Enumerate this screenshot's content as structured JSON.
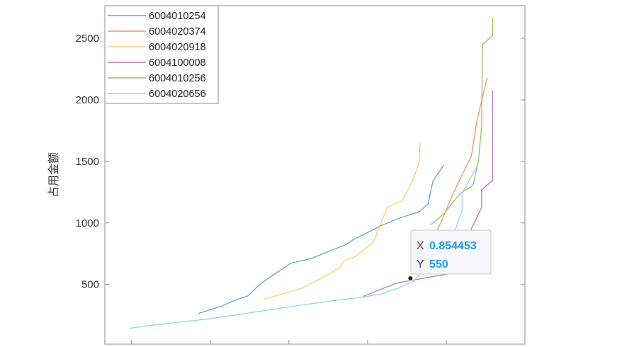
{
  "chart_data": {
    "type": "line",
    "title": "",
    "xlabel": "",
    "ylabel": "占用金额",
    "xlim": [
      0.466,
      1.0
    ],
    "ylim": [
      15,
      2765
    ],
    "xticks": [
      0.5,
      0.6,
      0.7,
      0.8,
      0.9,
      1.0
    ],
    "yticks": [
      500,
      1000,
      1500,
      2000,
      2500
    ],
    "ytick_labels": [
      "500",
      "1000",
      "1500",
      "2000",
      "2500"
    ],
    "grid": false,
    "legend_position": "top-left",
    "series": [
      {
        "name": "6004010254",
        "color": "#5fa2d6",
        "x": [
          0.585,
          0.616,
          0.63,
          0.648,
          0.661,
          0.673,
          0.702,
          0.729,
          0.751,
          0.772,
          0.783,
          0.801,
          0.819,
          0.841,
          0.866,
          0.877,
          0.883,
          0.897
        ],
        "y": [
          264,
          328,
          368,
          408,
          489,
          546,
          672,
          713,
          770,
          822,
          868,
          925,
          983,
          1040,
          1092,
          1155,
          1339,
          1471
        ]
      },
      {
        "name": "6004020374",
        "color": "#f0916b",
        "x": [
          0.884,
          0.893,
          0.909,
          0.932,
          0.939,
          0.952
        ],
        "y": [
          885,
          1000,
          1241,
          1546,
          1833,
          2178
        ]
      },
      {
        "name": "6004020918",
        "color": "#f6d06e",
        "x": [
          0.668,
          0.715,
          0.742,
          0.765,
          0.769,
          0.785,
          0.807,
          0.825,
          0.844,
          0.858,
          0.865,
          0.867
        ],
        "y": [
          379,
          466,
          552,
          638,
          684,
          730,
          839,
          1126,
          1178,
          1356,
          1477,
          1649
        ]
      },
      {
        "name": "6004100008",
        "color": "#b27bc2",
        "x": [
          0.794,
          0.837,
          0.882,
          0.914,
          0.927,
          0.932,
          0.945,
          0.945,
          0.959,
          0.959
        ],
        "y": [
          402,
          511,
          563,
          598,
          770,
          954,
          1126,
          1270,
          1345,
          2075
        ]
      },
      {
        "name": "6004010256",
        "color": "#92c35e",
        "x": [
          0.88,
          0.897,
          0.918,
          0.934,
          0.941,
          0.945,
          0.946,
          0.959,
          0.959
        ],
        "y": [
          983,
          1075,
          1241,
          1305,
          1506,
          1793,
          2448,
          2523,
          2667
        ]
      },
      {
        "name": "6004020656",
        "color": "#8fd4f3",
        "x": [
          0.497,
          0.531,
          0.603,
          0.657,
          0.711,
          0.756,
          0.794,
          0.819,
          0.844,
          0.859,
          0.912,
          0.92,
          0.92,
          0.939
        ],
        "y": [
          144,
          172,
          224,
          276,
          328,
          368,
          397,
          425,
          483,
          529,
          954,
          1103,
          1241,
          1460
        ]
      }
    ],
    "datatip": {
      "x_key": "X",
      "x_value": "0.854453",
      "y_key": "Y",
      "y_value": "550",
      "x": 0.854453,
      "y": 550
    }
  }
}
